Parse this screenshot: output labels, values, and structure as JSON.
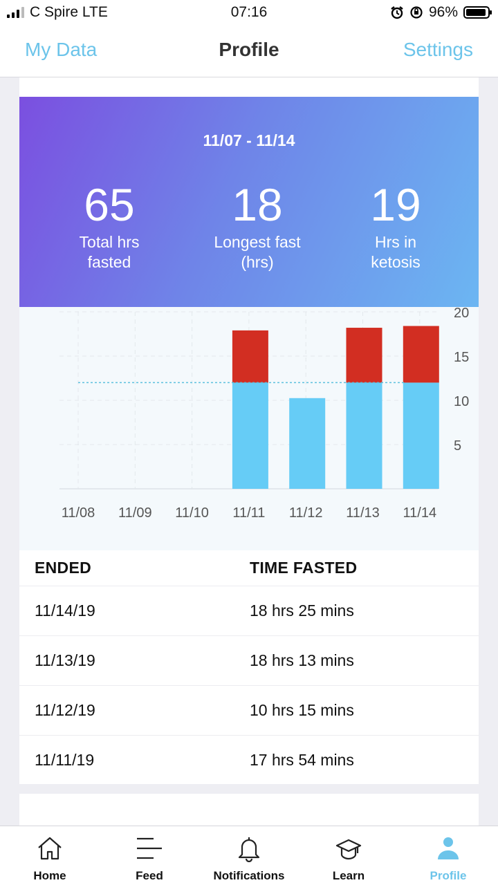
{
  "status": {
    "carrier": "C Spire",
    "network": "LTE",
    "time": "07:16",
    "battery": "96%"
  },
  "nav": {
    "left": "My Data",
    "title": "Profile",
    "right": "Settings"
  },
  "summary": {
    "range": "11/07 - 11/14",
    "stats": [
      {
        "value": "65",
        "line1": "Total hrs",
        "line2": "fasted"
      },
      {
        "value": "18",
        "line1": "Longest fast",
        "line2": "(hrs)"
      },
      {
        "value": "19",
        "line1": "Hrs in",
        "line2": "ketosis"
      }
    ]
  },
  "chart_data": {
    "type": "bar",
    "stacked": true,
    "categories": [
      "11/08",
      "11/09",
      "11/10",
      "11/11",
      "11/12",
      "11/13",
      "11/14"
    ],
    "series": [
      {
        "values": [
          0,
          0,
          0,
          12,
          10.25,
          12,
          12
        ],
        "color": "#66ccf6"
      },
      {
        "values": [
          0,
          0,
          0,
          5.9,
          0,
          6.2,
          6.4
        ],
        "color": "#d22e22"
      }
    ],
    "target_line": 12,
    "yticks": [
      5,
      10,
      15,
      20
    ],
    "ylim": [
      0,
      20
    ],
    "grid": true,
    "axis_side": "right"
  },
  "table": {
    "headers": [
      "ENDED",
      "TIME FASTED"
    ],
    "rows": [
      [
        "11/14/19",
        "18 hrs 25 mins"
      ],
      [
        "11/13/19",
        "18 hrs 13 mins"
      ],
      [
        "11/12/19",
        "10 hrs 15 mins"
      ],
      [
        "11/11/19",
        "17 hrs 54 mins"
      ]
    ]
  },
  "tabs": [
    {
      "label": "Home",
      "icon": "home-icon",
      "active": false
    },
    {
      "label": "Feed",
      "icon": "feed-icon",
      "active": false
    },
    {
      "label": "Notifications",
      "icon": "bell-icon",
      "active": false
    },
    {
      "label": "Learn",
      "icon": "graduation-cap-icon",
      "active": false
    },
    {
      "label": "Profile",
      "icon": "person-icon",
      "active": true
    }
  ],
  "colors": {
    "accent": "#6cc4ea",
    "fast": "#66ccf6",
    "ketosis": "#d22e22"
  }
}
